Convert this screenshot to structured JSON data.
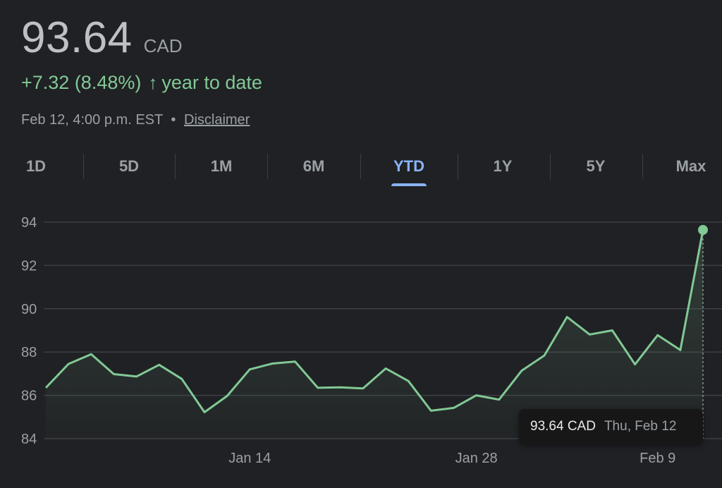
{
  "quote": {
    "price": "93.64",
    "currency": "CAD",
    "change": "+7.32 (8.48%)",
    "change_arrow": "↑",
    "change_period": "year to date",
    "timestamp": "Feb 12, 4:00 p.m. EST",
    "separator": "•",
    "disclaimer": "Disclaimer"
  },
  "tabs": [
    {
      "label": "1D",
      "active": false
    },
    {
      "label": "5D",
      "active": false
    },
    {
      "label": "1M",
      "active": false
    },
    {
      "label": "6M",
      "active": false
    },
    {
      "label": "YTD",
      "active": true
    },
    {
      "label": "1Y",
      "active": false
    },
    {
      "label": "5Y",
      "active": false
    },
    {
      "label": "Max",
      "active": false
    }
  ],
  "tooltip": {
    "price": "93.64 CAD",
    "date": "Thu, Feb 12"
  },
  "colors": {
    "background": "#202124",
    "positive": "#81c995",
    "accent": "#8ab4f8",
    "gridline": "#3c4043",
    "muted": "#9aa0a6"
  },
  "chart_data": {
    "type": "line",
    "ylim": [
      84,
      94
    ],
    "y_ticks": [
      84,
      86,
      88,
      90,
      92,
      94
    ],
    "x_tick_labels": [
      {
        "label": "Jan 14",
        "index": 9
      },
      {
        "label": "Jan 28",
        "index": 19
      },
      {
        "label": "Feb 9",
        "index": 27
      }
    ],
    "series": [
      {
        "values": [
          86.35,
          87.45,
          87.9,
          86.98,
          86.87,
          87.41,
          86.76,
          85.22,
          85.97,
          87.2,
          87.47,
          87.56,
          86.35,
          86.37,
          86.32,
          87.24,
          86.66,
          85.29,
          85.42,
          86.0,
          85.8,
          87.14,
          87.84,
          89.62,
          88.81,
          89.0,
          87.43,
          88.78,
          88.09,
          93.64
        ]
      }
    ],
    "highlight": {
      "index": 29,
      "value": 93.64
    },
    "grid": true
  }
}
